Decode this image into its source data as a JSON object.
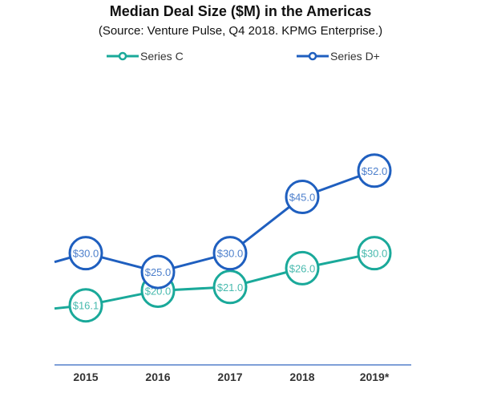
{
  "chart_data": {
    "type": "line",
    "title": "Median Deal Size ($M) in the Americas",
    "subtitle": "(Source: Venture Pulse, Q4 2018. KPMG Enterprise.)",
    "categories": [
      "2015",
      "2016",
      "2017",
      "2018",
      "2019*"
    ],
    "series": [
      {
        "name": "Series C",
        "color": "#1aa99a",
        "values": [
          16.1,
          20.0,
          21.0,
          26.0,
          30.0
        ],
        "labels": [
          "$16.1",
          "$20.0",
          "$21.0",
          "$26.0",
          "$30.0"
        ]
      },
      {
        "name": "Series D+",
        "color": "#1f5fbf",
        "values": [
          30.0,
          25.0,
          30.0,
          45.0,
          52.0
        ],
        "labels": [
          "$30.0",
          "$25.0",
          "$30.0",
          "$45.0",
          "$52.0"
        ]
      }
    ],
    "ylim": [
      0,
      62
    ],
    "grid": false,
    "legend": "top",
    "axis_color": "#7f9fd8"
  }
}
